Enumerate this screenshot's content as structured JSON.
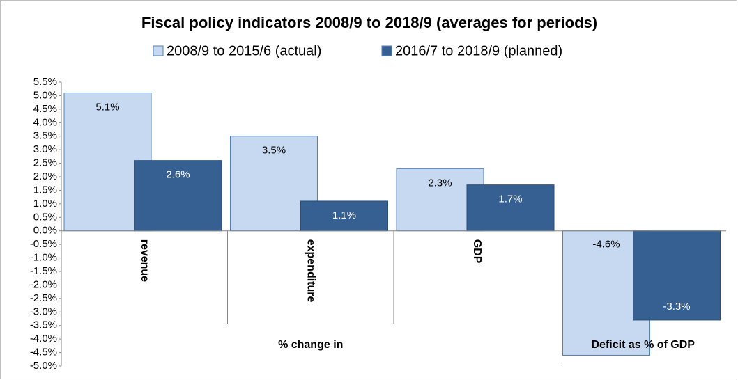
{
  "chart_data": {
    "type": "bar",
    "title": "Fiscal policy indicators 2008/9 to 2018/9 (averages for periods)",
    "categories": [
      "revenue",
      "expenditure",
      "GDP",
      null
    ],
    "groups": [
      "% change in",
      "Deficit as % of GDP"
    ],
    "series": [
      {
        "name": "2008/9 to 2015/6 (actual)",
        "color": "#c6d9f1",
        "values": [
          5.1,
          3.5,
          2.3,
          -4.6
        ],
        "value_labels": [
          "5.1%",
          "3.5%",
          "2.3%",
          "-4.6%"
        ]
      },
      {
        "name": "2016/7 to 2018/9 (planned)",
        "color": "#376092",
        "values": [
          2.6,
          1.1,
          1.7,
          -3.3
        ],
        "value_labels": [
          "2.6%",
          "1.1%",
          "1.7%",
          "-3.3%"
        ]
      }
    ],
    "ylim": [
      -5.0,
      5.5
    ],
    "yticks": [
      {
        "value": -5.0,
        "label": "-5.0%"
      },
      {
        "value": -4.5,
        "label": "-4.5%"
      },
      {
        "value": -4.0,
        "label": "-4.0%"
      },
      {
        "value": -3.5,
        "label": "-3.5%"
      },
      {
        "value": -3.0,
        "label": "-3.0%"
      },
      {
        "value": -2.5,
        "label": "-2.5%"
      },
      {
        "value": -2.0,
        "label": "-2.0%"
      },
      {
        "value": -1.5,
        "label": "-1.5%"
      },
      {
        "value": -1.0,
        "label": "-1.0%"
      },
      {
        "value": -0.5,
        "label": "-0.5%"
      },
      {
        "value": 0.0,
        "label": "0.0%"
      },
      {
        "value": 0.5,
        "label": "0.5%"
      },
      {
        "value": 1.0,
        "label": "1.0%"
      },
      {
        "value": 1.5,
        "label": "1.5%"
      },
      {
        "value": 2.0,
        "label": "2.0%"
      },
      {
        "value": 2.5,
        "label": "2.5%"
      },
      {
        "value": 3.0,
        "label": "3.0%"
      },
      {
        "value": 3.5,
        "label": "3.5%"
      },
      {
        "value": 4.0,
        "label": "4.0%"
      },
      {
        "value": 4.5,
        "label": "4.5%"
      },
      {
        "value": 5.0,
        "label": "5.0%"
      },
      {
        "value": 5.5,
        "label": "5.5%"
      }
    ],
    "grid": false
  }
}
